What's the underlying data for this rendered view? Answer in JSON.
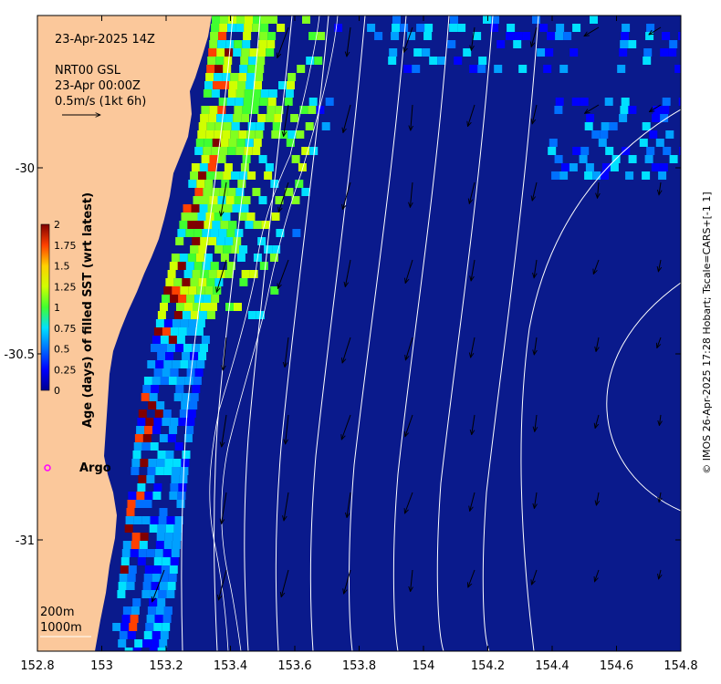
{
  "map": {
    "date_label": "23-Apr-2025 14Z",
    "product_label": "NRT00 GSL",
    "product_time": "23-Apr 00:00Z",
    "scale_label": "0.5m/s (1kt 6h)",
    "x_ticks": [
      "152.8",
      "153",
      "153.2",
      "153.4",
      "153.6",
      "153.8",
      "154",
      "154.2",
      "154.4",
      "154.6",
      "154.8"
    ],
    "y_ticks": [
      "-30",
      "-30.5",
      "-31"
    ],
    "colorbar": {
      "title": "Age (days) of filled SST (wrt latest)",
      "ticks": [
        "2",
        "1.75",
        "1.5",
        "1.25",
        "1",
        "0.75",
        "0.5",
        "0.25",
        "0"
      ],
      "range": [
        0,
        2
      ]
    },
    "argo_label": "Argo",
    "isobath_200": "200m",
    "isobath_1000": "1000m",
    "credit": "© IMOS 26-Apr-2025 17:28 Hobart; Tscale=CARS+[-1 1]",
    "colors": {
      "land": "#fbc89b",
      "ocean": "#0a1a8c",
      "argo": "#ff00ff"
    }
  }
}
